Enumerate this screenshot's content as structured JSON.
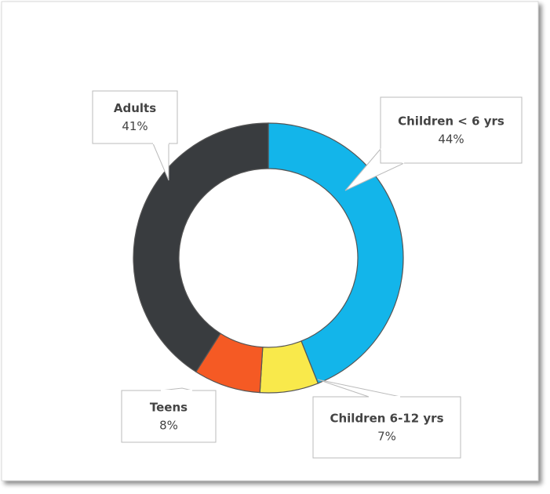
{
  "chart_data": {
    "type": "donut",
    "categories": [
      "Children < 6 yrs",
      "Children 6-12 yrs",
      "Teens",
      "Adults"
    ],
    "values": [
      44,
      7,
      8,
      41
    ],
    "value_labels": [
      "44%",
      "7%",
      "8%",
      "41%"
    ],
    "colors": [
      "#13b5ea",
      "#f9e94b",
      "#f55a24",
      "#393c3f"
    ]
  }
}
